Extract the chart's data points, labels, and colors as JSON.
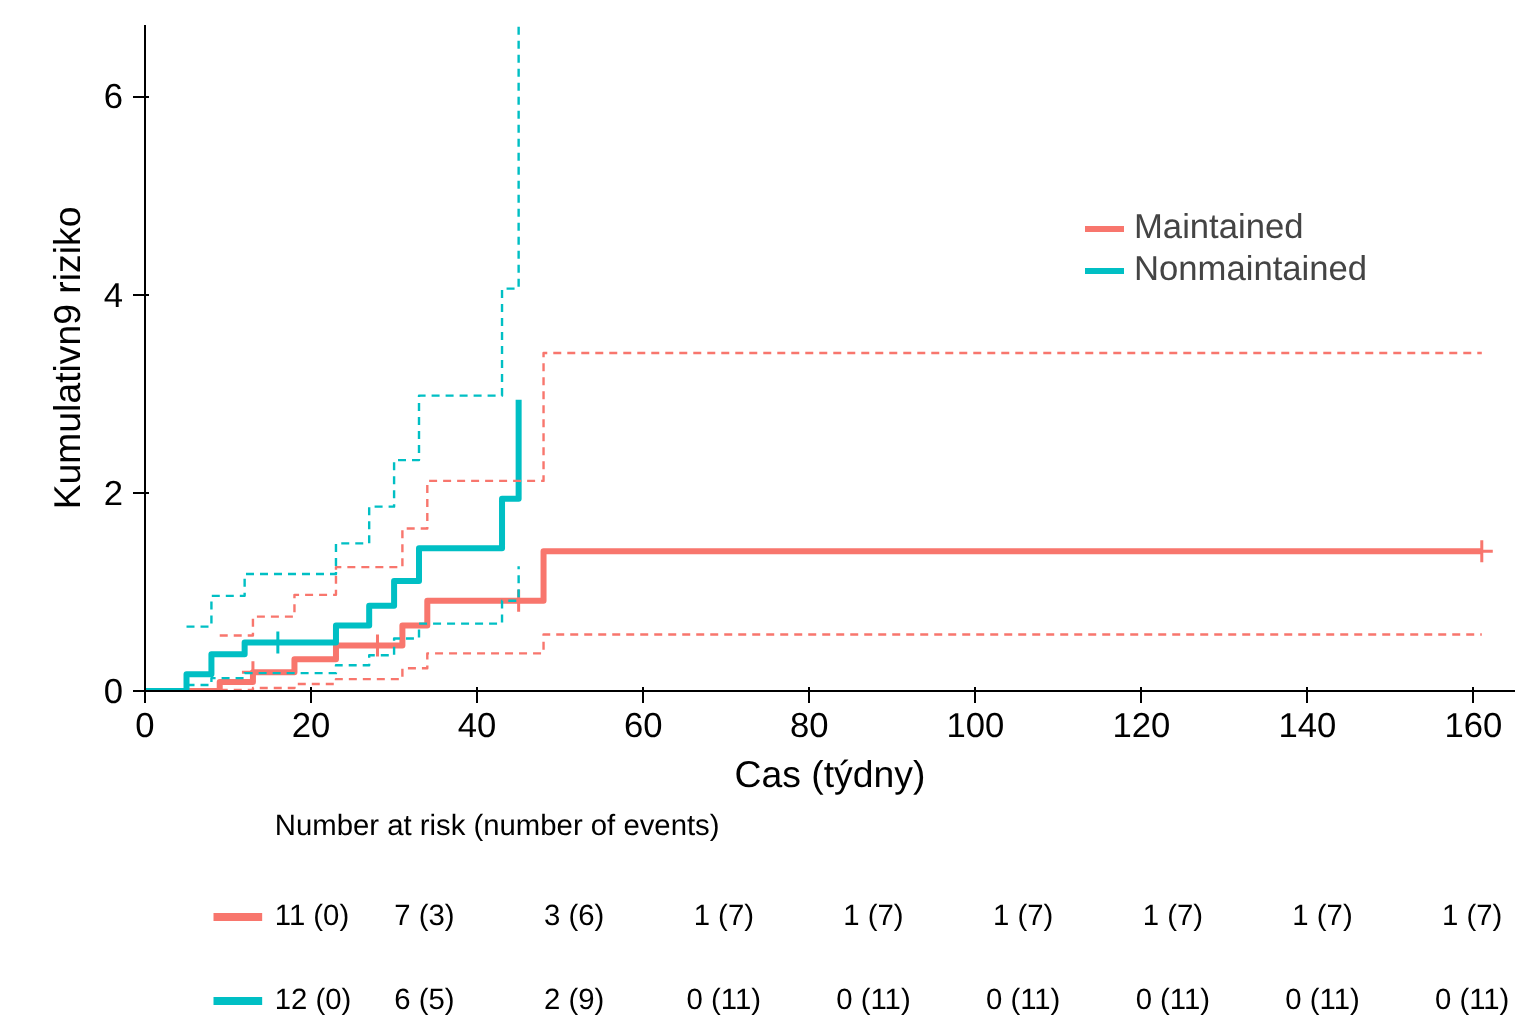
{
  "chart_data": {
    "type": "step",
    "xlabel": "Cas (týdny)",
    "ylabel": "Kumulativn9 riziko",
    "xlim": [
      0,
      165
    ],
    "ylim": [
      0,
      6.72
    ],
    "xticks": [
      0,
      20,
      40,
      60,
      80,
      100,
      120,
      140,
      160
    ],
    "yticks": [
      0,
      2,
      4,
      6
    ],
    "grid": false,
    "legend": "right",
    "series": [
      {
        "name": "Maintained",
        "color": "#f8766d",
        "x": [
          0,
          9,
          13,
          18,
          23,
          31,
          34,
          48,
          161
        ],
        "values": [
          0,
          0.09,
          0.19,
          0.32,
          0.46,
          0.66,
          0.91,
          1.41,
          1.41
        ]
      },
      {
        "name": "Nonmaintained",
        "color": "#00bfc4",
        "x": [
          0,
          5,
          8,
          12,
          23,
          27,
          30,
          33,
          43,
          45
        ],
        "values": [
          0,
          0.17,
          0.37,
          0.49,
          0.66,
          0.86,
          1.11,
          1.44,
          1.94,
          2.94
        ]
      },
      {
        "color": "#f8766d",
        "type": "scatter",
        "marker": "cross",
        "x": [
          13,
          28,
          45,
          161
        ],
        "values": [
          0.19,
          0.46,
          0.91,
          1.41
        ]
      },
      {
        "color": "#00bfc4",
        "type": "scatter",
        "marker": "cross",
        "x": [
          16
        ],
        "values": [
          0.49
        ]
      },
      {
        "color": "#f8766d",
        "line_style": "dashed",
        "x": [
          9,
          13,
          18,
          23,
          31,
          34,
          48,
          161
        ],
        "values": [
          0.56,
          0.75,
          0.97,
          1.25,
          1.64,
          2.12,
          3.41,
          3.41
        ]
      },
      {
        "color": "#f8766d",
        "line_style": "dashed",
        "x": [
          9,
          13,
          18,
          23,
          31,
          34,
          48,
          161
        ],
        "values": [
          0.01,
          0.03,
          0.07,
          0.12,
          0.23,
          0.38,
          0.57,
          0.57
        ]
      },
      {
        "color": "#00bfc4",
        "line_style": "dashed",
        "x": [
          5,
          8,
          12,
          23,
          27,
          30,
          33,
          43,
          45
        ],
        "values": [
          0.65,
          0.96,
          1.18,
          1.49,
          1.86,
          2.33,
          2.98,
          4.06,
          6.72
        ]
      },
      {
        "color": "#00bfc4",
        "line_style": "dashed",
        "x": [
          5,
          8,
          12,
          23,
          27,
          30,
          33,
          43,
          45
        ],
        "values": [
          0.06,
          0.13,
          0.18,
          0.26,
          0.36,
          0.53,
          0.68,
          0.91,
          1.26
        ]
      }
    ],
    "annotations": [
      "Number at risk (number of events)",
      "11 (0)",
      "7 (3)",
      "3 (6)",
      "1 (7)",
      "1 (7)",
      "1 (7)",
      "1 (7)",
      "1 (7)",
      "1 (7)",
      "12 (0)",
      "6 (5)",
      "2 (9)",
      "0 (11)",
      "0 (11)",
      "0 (11)",
      "0 (11)",
      "0 (11)",
      "0 (11)"
    ]
  }
}
